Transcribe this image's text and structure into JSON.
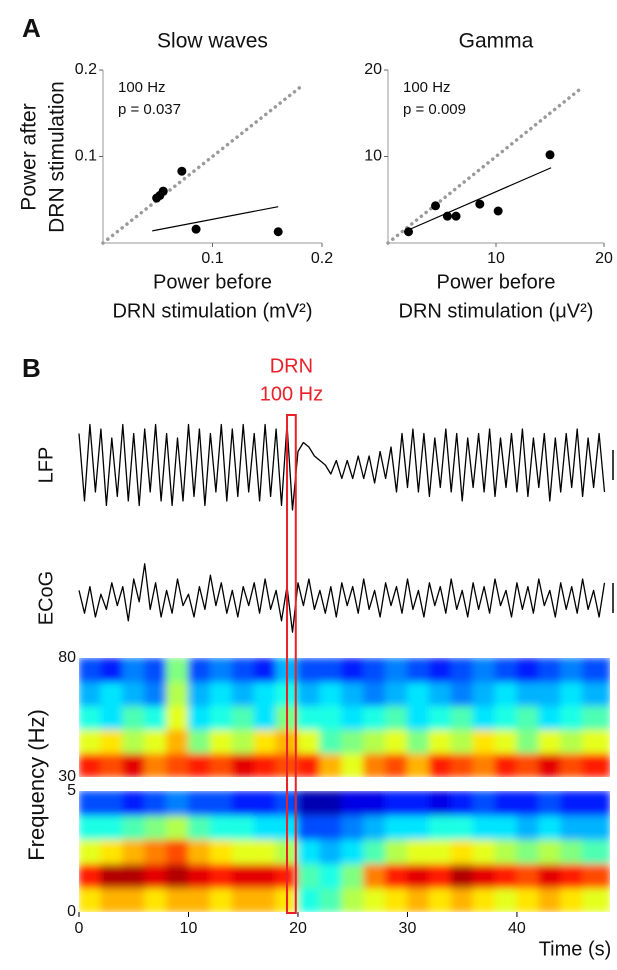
{
  "chart_data": [
    {
      "type": "scatter",
      "panel_label": "A",
      "title": "Slow waves",
      "ylabel": [
        "Power after",
        "DRN stimulation"
      ],
      "xlabel": [
        "Power before",
        "DRN stimulation (mV²)"
      ],
      "annotations": [
        "100 Hz",
        "p = 0.037"
      ],
      "x": [
        0.049,
        0.052,
        0.055,
        0.072,
        0.085,
        0.16
      ],
      "y": [
        0.052,
        0.055,
        0.06,
        0.083,
        0.016,
        0.013
      ],
      "fit": {
        "x": [
          0.045,
          0.16
        ],
        "y": [
          0.014,
          0.042
        ]
      },
      "xlim": [
        0,
        0.2
      ],
      "ylim": [
        0,
        0.2
      ],
      "xticks": [
        0.1,
        0.2
      ],
      "yticks": [
        0.1,
        0.2
      ],
      "color": "#000000",
      "identity_line": true
    },
    {
      "type": "scatter",
      "title": "Gamma",
      "xlabel": [
        "Power before",
        "DRN stimulation (μV²)"
      ],
      "annotations": [
        "100 Hz",
        "p = 0.009"
      ],
      "x": [
        1.9,
        4.4,
        5.5,
        6.3,
        8.5,
        10.2,
        15
      ],
      "y": [
        1.3,
        4.3,
        3.1,
        3.1,
        4.5,
        3.7,
        10.2
      ],
      "fit": {
        "x": [
          1.5,
          15.1
        ],
        "y": [
          1.3,
          8.7
        ]
      },
      "xlim": [
        0,
        20
      ],
      "ylim": [
        0,
        20
      ],
      "xticks": [
        10,
        20
      ],
      "yticks": [
        10,
        20
      ],
      "color": "#000000",
      "identity_line": true
    },
    {
      "type": "line",
      "panel_label": "B",
      "x": [
        0,
        0.5,
        1,
        1.5,
        2,
        2.5,
        3,
        3.5,
        4,
        4.5,
        5,
        5.5,
        6,
        6.5,
        7,
        7.5,
        8,
        8.5,
        9,
        9.5,
        10,
        10.5,
        11,
        11.5,
        12,
        12.5,
        13,
        13.5,
        14,
        14.5,
        15,
        15.5,
        16,
        16.5,
        17,
        17.5,
        18,
        18.5,
        19,
        19.5,
        20,
        20.5,
        21,
        21.5,
        22,
        22.5,
        23,
        23.5,
        24,
        24.5,
        25,
        25.5,
        26,
        26.5,
        27,
        27.5,
        28,
        28.5,
        29,
        29.5,
        30,
        30.5,
        31,
        31.5,
        32,
        32.5,
        33,
        33.5,
        34,
        34.5,
        35,
        35.5,
        36,
        36.5,
        37,
        37.5,
        38,
        38.5,
        39,
        39.5,
        40,
        40.5,
        41,
        41.5,
        42,
        42.5,
        43,
        43.5,
        44,
        44.5,
        45,
        45.5,
        46,
        46.5,
        47,
        47.5,
        48
      ],
      "series": [
        {
          "name": "LFP",
          "color": "#000000",
          "values": [
            0.7,
            -0.8,
            0.9,
            -0.6,
            0.8,
            -0.9,
            0.6,
            -0.7,
            0.9,
            -0.8,
            0.7,
            -0.9,
            0.8,
            -0.6,
            0.9,
            -0.8,
            0.7,
            -0.9,
            0.6,
            -0.8,
            0.9,
            -0.7,
            0.8,
            -0.9,
            0.7,
            -0.6,
            0.9,
            -0.8,
            0.8,
            -0.7,
            0.9,
            -0.6,
            0.7,
            -0.8,
            0.9,
            -0.7,
            0.8,
            -0.9,
            0.9,
            -1.0,
            0.3,
            0.5,
            0.4,
            0.2,
            0.1,
            0.0,
            -0.2,
            0.1,
            -0.3,
            0.1,
            -0.3,
            0.2,
            -0.3,
            0.2,
            -0.4,
            0.3,
            -0.3,
            0.4,
            -0.6,
            0.7,
            -0.5,
            0.8,
            -0.6,
            0.7,
            -0.7,
            0.6,
            -0.5,
            0.8,
            -0.6,
            0.7,
            -0.8,
            0.6,
            -0.5,
            0.7,
            -0.6,
            0.8,
            -0.7,
            0.6,
            -0.5,
            0.7,
            -0.6,
            0.8,
            -0.7,
            0.6,
            -0.5,
            0.7,
            -0.8,
            0.6,
            -0.6,
            0.7,
            -0.5,
            0.8,
            -0.7,
            0.6,
            -0.5,
            0.7,
            -0.6
          ]
        },
        {
          "name": "ECoG",
          "color": "#000000",
          "values": [
            0.2,
            -0.4,
            0.3,
            -0.5,
            0.1,
            -0.3,
            0.4,
            -0.2,
            0.3,
            -0.6,
            0.5,
            -0.1,
            0.9,
            -0.3,
            0.4,
            -0.5,
            0.2,
            -0.4,
            0.5,
            -0.2,
            0.1,
            -0.5,
            0.3,
            -0.3,
            0.6,
            -0.2,
            0.4,
            -0.4,
            0.2,
            -0.5,
            0.3,
            -0.2,
            0.4,
            -0.4,
            0.5,
            -0.3,
            0.2,
            -0.6,
            0.3,
            -0.9,
            0.4,
            -0.2,
            0.5,
            -0.3,
            0.2,
            -0.4,
            0.3,
            -0.5,
            0.4,
            -0.2,
            0.3,
            -0.4,
            0.5,
            -0.3,
            0.2,
            -0.5,
            0.4,
            -0.2,
            0.3,
            -0.4,
            0.5,
            -0.3,
            0.2,
            -0.5,
            0.4,
            -0.2,
            0.3,
            -0.4,
            0.5,
            -0.3,
            0.2,
            -0.5,
            0.4,
            -0.3,
            0.3,
            -0.4,
            0.5,
            -0.2,
            0.2,
            -0.5,
            0.4,
            -0.3,
            0.3,
            -0.4,
            0.5,
            -0.2,
            0.2,
            -0.5,
            0.4,
            -0.3,
            0.3,
            -0.4,
            0.5,
            -0.3,
            0.2,
            -0.5,
            0.4
          ]
        }
      ],
      "xlim": [
        0,
        48.5
      ],
      "stim": [
        19,
        19.8
      ],
      "stim_label": [
        "DRN",
        "100 Hz"
      ],
      "stim_color": "#e8212a"
    },
    {
      "type": "heatmap",
      "colormap": "jet",
      "x": [
        1,
        3,
        5,
        7,
        9,
        11,
        13,
        15,
        17,
        19,
        21,
        23,
        25,
        27,
        29,
        31,
        33,
        35,
        37,
        39,
        41,
        43,
        45,
        47
      ],
      "y": [
        35,
        45,
        55,
        65,
        75
      ],
      "z": [
        [
          0.85,
          0.8,
          0.9,
          0.75,
          0.8,
          0.85,
          0.8,
          0.9,
          0.85,
          0.8,
          0.85,
          0.7,
          0.6,
          0.75,
          0.8,
          0.7,
          0.85,
          0.8,
          0.75,
          0.85,
          0.8,
          0.9,
          0.8,
          0.85
        ],
        [
          0.6,
          0.65,
          0.55,
          0.6,
          0.7,
          0.5,
          0.6,
          0.55,
          0.65,
          0.7,
          0.6,
          0.45,
          0.5,
          0.55,
          0.6,
          0.5,
          0.6,
          0.55,
          0.65,
          0.6,
          0.5,
          0.6,
          0.55,
          0.6
        ],
        [
          0.4,
          0.35,
          0.45,
          0.4,
          0.6,
          0.35,
          0.4,
          0.45,
          0.35,
          0.5,
          0.4,
          0.4,
          0.35,
          0.4,
          0.45,
          0.35,
          0.4,
          0.45,
          0.35,
          0.4,
          0.45,
          0.35,
          0.4,
          0.45
        ],
        [
          0.3,
          0.35,
          0.3,
          0.25,
          0.55,
          0.3,
          0.35,
          0.3,
          0.35,
          0.4,
          0.3,
          0.35,
          0.3,
          0.25,
          0.3,
          0.35,
          0.3,
          0.25,
          0.3,
          0.35,
          0.3,
          0.3,
          0.35,
          0.3
        ],
        [
          0.2,
          0.15,
          0.25,
          0.2,
          0.5,
          0.2,
          0.25,
          0.2,
          0.15,
          0.3,
          0.2,
          0.2,
          0.15,
          0.2,
          0.25,
          0.2,
          0.15,
          0.2,
          0.25,
          0.2,
          0.15,
          0.2,
          0.25,
          0.2
        ]
      ],
      "xlim": [
        0,
        48.5
      ],
      "ylim": [
        30,
        80
      ],
      "yticks": [
        30,
        80
      ]
    },
    {
      "type": "heatmap",
      "colormap": "jet",
      "x": [
        1,
        3,
        5,
        7,
        9,
        11,
        13,
        15,
        17,
        19,
        21,
        23,
        25,
        27,
        29,
        31,
        33,
        35,
        37,
        39,
        41,
        43,
        45,
        47
      ],
      "y": [
        0.5,
        1.5,
        2.5,
        3.5,
        4.5
      ],
      "z": [
        [
          0.65,
          0.7,
          0.7,
          0.65,
          0.7,
          0.7,
          0.65,
          0.7,
          0.7,
          0.65,
          0.4,
          0.45,
          0.55,
          0.6,
          0.65,
          0.7,
          0.65,
          0.7,
          0.65,
          0.6,
          0.65,
          0.7,
          0.65,
          0.6
        ],
        [
          0.85,
          0.95,
          0.95,
          0.9,
          0.95,
          0.9,
          0.85,
          0.9,
          0.9,
          0.85,
          0.45,
          0.4,
          0.5,
          0.75,
          0.85,
          0.9,
          0.85,
          0.95,
          0.9,
          0.85,
          0.8,
          0.9,
          0.85,
          0.8
        ],
        [
          0.6,
          0.65,
          0.7,
          0.75,
          0.8,
          0.7,
          0.65,
          0.6,
          0.6,
          0.55,
          0.35,
          0.3,
          0.35,
          0.45,
          0.55,
          0.6,
          0.6,
          0.65,
          0.6,
          0.55,
          0.5,
          0.55,
          0.5,
          0.45
        ],
        [
          0.4,
          0.4,
          0.45,
          0.5,
          0.55,
          0.45,
          0.4,
          0.4,
          0.35,
          0.35,
          0.2,
          0.2,
          0.25,
          0.3,
          0.35,
          0.35,
          0.4,
          0.4,
          0.35,
          0.35,
          0.3,
          0.35,
          0.3,
          0.3
        ],
        [
          0.2,
          0.2,
          0.15,
          0.2,
          0.25,
          0.2,
          0.2,
          0.15,
          0.15,
          0.2,
          0.05,
          0.05,
          0.1,
          0.1,
          0.15,
          0.15,
          0.1,
          0.15,
          0.2,
          0.15,
          0.15,
          0.2,
          0.15,
          0.15
        ]
      ],
      "xlim": [
        0,
        48.5
      ],
      "ylim": [
        0,
        5
      ],
      "yticks": [
        0,
        5
      ],
      "xticks": [
        0,
        10,
        20,
        30,
        40
      ],
      "xlabel": "Time (s)",
      "ylabel": "Frequency (Hz)"
    }
  ]
}
